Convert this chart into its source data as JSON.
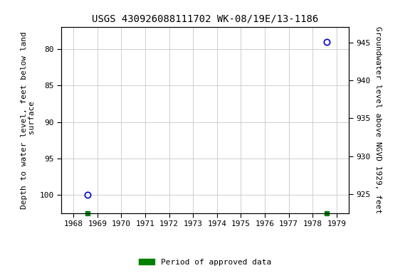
{
  "title": "USGS 430926088111702 WK-08/19E/13-1186",
  "ylabel_left": "Depth to water level, feet below land\n surface",
  "ylabel_right": "Groundwater level above NGVD 1929, feet",
  "xlim": [
    1967.5,
    1979.5
  ],
  "ylim_left": [
    102.5,
    77.0
  ],
  "ylim_right": [
    922.5,
    947.0
  ],
  "yticks_left": [
    80,
    85,
    90,
    95,
    100
  ],
  "yticks_right": [
    925,
    930,
    935,
    940,
    945
  ],
  "xticks": [
    1968,
    1969,
    1970,
    1971,
    1972,
    1973,
    1974,
    1975,
    1976,
    1977,
    1978,
    1979
  ],
  "data_points": [
    {
      "year": 1968.6,
      "depth": 100.0
    },
    {
      "year": 1978.6,
      "depth": 79.0
    }
  ],
  "green_marker_years": [
    1968.6,
    1978.6
  ],
  "marker_color": "#0000cc",
  "green_color": "#008000",
  "background_color": "#ffffff",
  "grid_color": "#c8c8c8",
  "legend_label": "Period of approved data",
  "title_fontsize": 10,
  "axis_label_fontsize": 8,
  "tick_fontsize": 8,
  "font_family": "monospace"
}
